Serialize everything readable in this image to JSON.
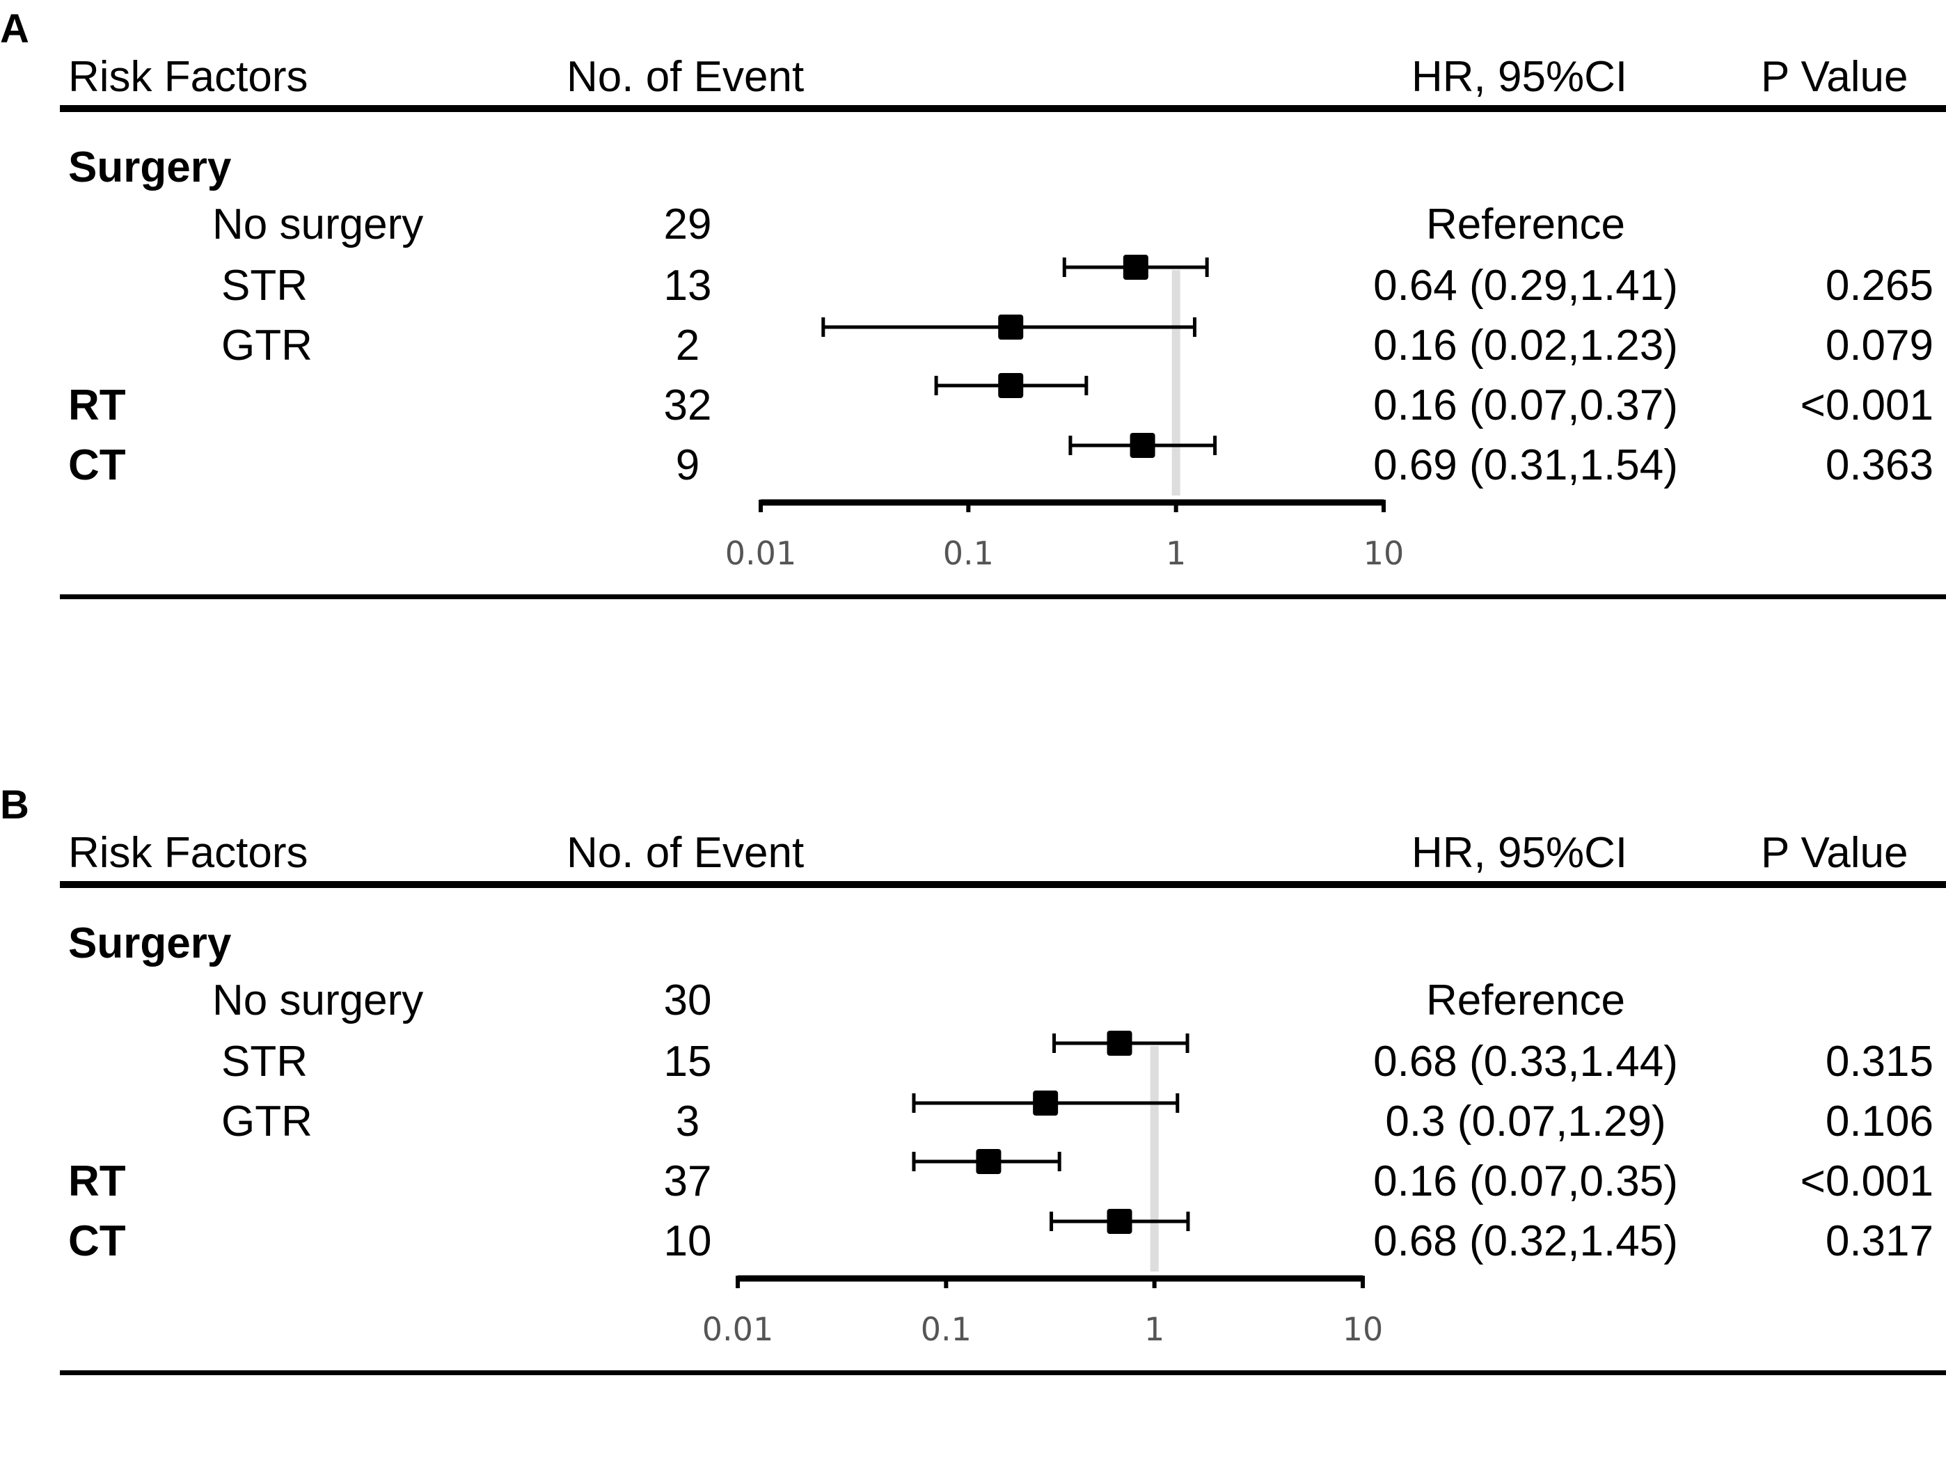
{
  "chart_data": [
    {
      "type": "forest",
      "panel_label": "A",
      "columns": {
        "risk_factors": "Risk Factors",
        "events": "No. of Event",
        "hr_ci": "HR, 95%CI",
        "p_value": "P Value"
      },
      "x_axis": {
        "scale": "log",
        "range": [
          0.01,
          10
        ],
        "ticks": [
          "0.01",
          "0.1",
          "1",
          "10"
        ],
        "reference_line": 1
      },
      "rows": [
        {
          "label": "Surgery",
          "bold": true,
          "level": 0,
          "events": "",
          "hr_ci": "",
          "p": "",
          "hr": null,
          "lo": null,
          "hi": null
        },
        {
          "label": "No surgery",
          "bold": false,
          "level": 1,
          "events": "29",
          "hr_ci": "Reference",
          "p": "",
          "hr": null,
          "lo": null,
          "hi": null
        },
        {
          "label": "STR",
          "bold": false,
          "level": 2,
          "events": "13",
          "hr_ci": "0.64 (0.29,1.41)",
          "p": "0.265",
          "hr": 0.64,
          "lo": 0.29,
          "hi": 1.41
        },
        {
          "label": "GTR",
          "bold": false,
          "level": 2,
          "events": "2",
          "hr_ci": "0.16 (0.02,1.23)",
          "p": "0.079",
          "hr": 0.16,
          "lo": 0.02,
          "hi": 1.23
        },
        {
          "label": "RT",
          "bold": true,
          "level": 0,
          "events": "32",
          "hr_ci": "0.16 (0.07,0.37)",
          "p": "<0.001",
          "hr": 0.16,
          "lo": 0.07,
          "hi": 0.37
        },
        {
          "label": "CT",
          "bold": true,
          "level": 0,
          "events": "9",
          "hr_ci": "0.69 (0.31,1.54)",
          "p": "0.363",
          "hr": 0.69,
          "lo": 0.31,
          "hi": 1.54
        }
      ]
    },
    {
      "type": "forest",
      "panel_label": "B",
      "columns": {
        "risk_factors": "Risk Factors",
        "events": "No. of Event",
        "hr_ci": "HR, 95%CI",
        "p_value": "P Value"
      },
      "x_axis": {
        "scale": "log",
        "range": [
          0.01,
          10
        ],
        "ticks": [
          "0.01",
          "0.1",
          "1",
          "10"
        ],
        "reference_line": 1
      },
      "rows": [
        {
          "label": "Surgery",
          "bold": true,
          "level": 0,
          "events": "",
          "hr_ci": "",
          "p": "",
          "hr": null,
          "lo": null,
          "hi": null
        },
        {
          "label": "No surgery",
          "bold": false,
          "level": 1,
          "events": "30",
          "hr_ci": "Reference",
          "p": "",
          "hr": null,
          "lo": null,
          "hi": null
        },
        {
          "label": "STR",
          "bold": false,
          "level": 2,
          "events": "15",
          "hr_ci": "0.68 (0.33,1.44)",
          "p": "0.315",
          "hr": 0.68,
          "lo": 0.33,
          "hi": 1.44
        },
        {
          "label": "GTR",
          "bold": false,
          "level": 2,
          "events": "3",
          "hr_ci": "0.3 (0.07,1.29)",
          "p": "0.106",
          "hr": 0.3,
          "lo": 0.07,
          "hi": 1.29
        },
        {
          "label": "RT",
          "bold": true,
          "level": 0,
          "events": "37",
          "hr_ci": "0.16 (0.07,0.35)",
          "p": "<0.001",
          "hr": 0.16,
          "lo": 0.07,
          "hi": 0.35
        },
        {
          "label": "CT",
          "bold": true,
          "level": 0,
          "events": "10",
          "hr_ci": "0.68 (0.32,1.45)",
          "p": "0.317",
          "hr": 0.68,
          "lo": 0.32,
          "hi": 1.45
        }
      ]
    }
  ]
}
